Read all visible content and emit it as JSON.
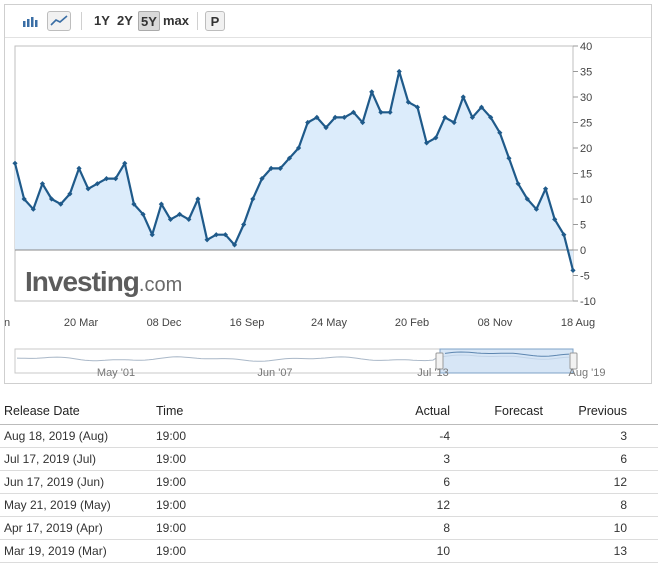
{
  "toolbar": {
    "ranges": [
      "1Y",
      "2Y",
      "5Y",
      "max"
    ],
    "active_range": "5Y",
    "print_label": "P"
  },
  "chart_data": {
    "type": "area",
    "x_tick_labels": [
      "n",
      "20 Mar",
      "08 Dec",
      "16 Sep",
      "24 May",
      "20 Feb",
      "08 Nov",
      "18 Aug"
    ],
    "y_ticks": [
      40,
      35,
      30,
      25,
      20,
      15,
      10,
      5,
      0,
      -5,
      -10
    ],
    "ylim": [
      -10,
      40
    ],
    "series": [
      {
        "values": [
          17,
          10,
          8,
          13,
          10,
          9,
          11,
          16,
          12,
          13,
          14,
          14,
          17,
          9,
          7,
          3,
          9,
          6,
          7,
          6,
          10,
          2,
          3,
          3,
          1,
          5,
          10,
          14,
          16,
          16,
          18,
          20,
          25,
          26,
          24,
          26,
          26,
          27,
          25,
          31,
          27,
          27,
          35,
          29,
          28,
          21,
          22,
          26,
          25,
          30,
          26,
          28,
          26,
          23,
          18,
          13,
          10,
          8,
          12,
          6,
          3,
          -4
        ]
      }
    ],
    "colors": {
      "line": "#1f5a8a",
      "fill": "#dcecfb",
      "zero_line": "#888888"
    },
    "watermark": "Investing",
    "watermark_suffix": ".com",
    "navigator_labels": [
      "May '01",
      "Jun '07",
      "Jul '13",
      "Aug '19"
    ]
  },
  "table": {
    "headers": {
      "date": "Release Date",
      "time": "Time",
      "actual": "Actual",
      "forecast": "Forecast",
      "previous": "Previous"
    },
    "rows": [
      {
        "date": "Aug 18, 2019 (Aug)",
        "time": "19:00",
        "actual": "-4",
        "forecast": "",
        "previous": "3"
      },
      {
        "date": "Jul 17, 2019 (Jul)",
        "time": "19:00",
        "actual": "3",
        "forecast": "",
        "previous": "6"
      },
      {
        "date": "Jun 17, 2019 (Jun)",
        "time": "19:00",
        "actual": "6",
        "forecast": "",
        "previous": "12"
      },
      {
        "date": "May 21, 2019 (May)",
        "time": "19:00",
        "actual": "12",
        "forecast": "",
        "previous": "8"
      },
      {
        "date": "Apr 17, 2019 (Apr)",
        "time": "19:00",
        "actual": "8",
        "forecast": "",
        "previous": "10"
      },
      {
        "date": "Mar 19, 2019 (Mar)",
        "time": "19:00",
        "actual": "10",
        "forecast": "",
        "previous": "13"
      }
    ]
  }
}
